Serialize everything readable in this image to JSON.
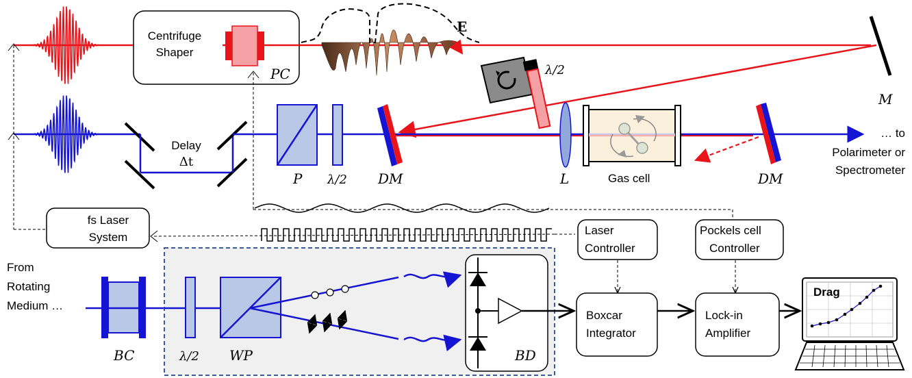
{
  "labels": {
    "centrifuge_shaper": [
      "Centrifuge",
      "Shaper"
    ],
    "pc": "PC",
    "e_field": "E",
    "half_wave_top": "λ/2",
    "mirror": "M",
    "delay": [
      "Delay",
      "Δt"
    ],
    "polarizer": "P",
    "half_wave_mid": "λ/2",
    "dichroic_left": "DM",
    "lens": "L",
    "gas_cell": "Gas cell",
    "dichroic_right": "DM",
    "output": [
      "… to",
      "Polarimeter or",
      "Spectrometer"
    ],
    "fs_laser": [
      "fs Laser",
      "System"
    ],
    "laser_controller": [
      "Laser",
      "Controller"
    ],
    "pockels_controller": [
      "Pockels cell",
      "Controller"
    ],
    "from_medium": [
      "From",
      "Rotating",
      "Medium …"
    ],
    "bc": "BC",
    "half_wave_bottom": "λ/2",
    "wp": "WP",
    "bd": "BD",
    "boxcar": [
      "Boxcar",
      "Integrator"
    ],
    "lockin": [
      "Lock-in",
      "Amplifier"
    ],
    "drag": "Drag"
  },
  "colors": {
    "pump_red": "#e8141a",
    "probe_blue": "#1414d2",
    "optic_fill": "#b8c8e6",
    "dashed_box": "#3a5a9a"
  },
  "icons": [
    "rotation-stage-icon",
    "laptop-icon",
    "photodiode-icon",
    "amplifier-icon"
  ]
}
